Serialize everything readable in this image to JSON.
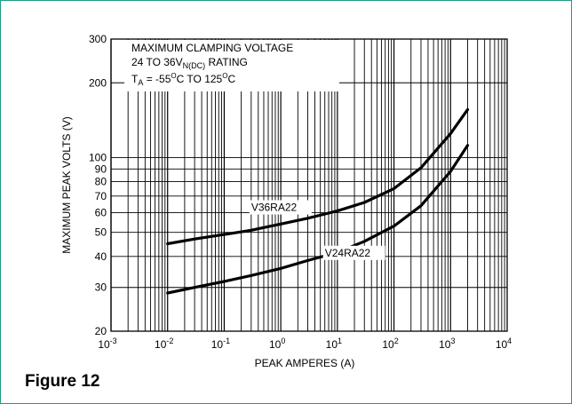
{
  "figure_caption": "Figure 12",
  "colors": {
    "frame": "#1e9a87",
    "ink": "#000000",
    "background": "#ffffff"
  },
  "chart_data": {
    "type": "line",
    "title_lines": [
      "MAXIMUM CLAMPING VOLTAGE",
      "24 TO 36V",
      "N(DC)",
      " RATING",
      "T",
      "A",
      " = -55",
      "O",
      "C TO 125",
      "O",
      "C"
    ],
    "title": {
      "line1": "MAXIMUM CLAMPING VOLTAGE",
      "line2": {
        "base": "24 TO 36V",
        "sub": "N(DC)",
        "rest": " RATING"
      },
      "line3": {
        "t": "T",
        "t_sub": "A",
        "a": " = -55",
        "s1": "O",
        "b": "C TO 125",
        "s2": "O",
        "c": "C"
      }
    },
    "xlabel": "PEAK AMPERES (A)",
    "ylabel": "MAXIMUM PEAK VOLTS (V)",
    "x_scale": "log",
    "y_scale": "log",
    "xlim": [
      0.001,
      10000
    ],
    "ylim": [
      20,
      300
    ],
    "x_ticks": [
      {
        "value": 0.001,
        "base": "10",
        "exp": "-3"
      },
      {
        "value": 0.01,
        "base": "10",
        "exp": "-2"
      },
      {
        "value": 0.1,
        "base": "10",
        "exp": "-1"
      },
      {
        "value": 1,
        "base": "10",
        "exp": "0"
      },
      {
        "value": 10,
        "base": "10",
        "exp": "1"
      },
      {
        "value": 100,
        "base": "10",
        "exp": "2"
      },
      {
        "value": 1000,
        "base": "10",
        "exp": "3"
      },
      {
        "value": 10000,
        "base": "10",
        "exp": "4"
      }
    ],
    "y_ticks": [
      {
        "value": 20,
        "label": "20"
      },
      {
        "value": 30,
        "label": "30"
      },
      {
        "value": 40,
        "label": "40"
      },
      {
        "value": 50,
        "label": "50"
      },
      {
        "value": 60,
        "label": "60"
      },
      {
        "value": 70,
        "label": "70"
      },
      {
        "value": 80,
        "label": "80"
      },
      {
        "value": 90,
        "label": "90"
      },
      {
        "value": 100,
        "label": "100"
      },
      {
        "value": 200,
        "label": "200"
      },
      {
        "value": 300,
        "label": "300"
      }
    ],
    "grid": true,
    "series": [
      {
        "name": "V36RA22",
        "x": [
          0.01,
          0.03,
          0.1,
          0.3,
          1,
          3,
          10,
          30,
          100,
          300,
          1000,
          2000
        ],
        "y": [
          45,
          47,
          49,
          51,
          54,
          57,
          61,
          66,
          75,
          91,
          125,
          156
        ]
      },
      {
        "name": "V24RA22",
        "x": [
          0.01,
          0.03,
          0.1,
          0.3,
          1,
          3,
          10,
          30,
          100,
          300,
          1000,
          2000
        ],
        "y": [
          28.5,
          30,
          31.7,
          33.5,
          35.8,
          38.5,
          41.5,
          46,
          53,
          64,
          88,
          112
        ]
      }
    ]
  }
}
